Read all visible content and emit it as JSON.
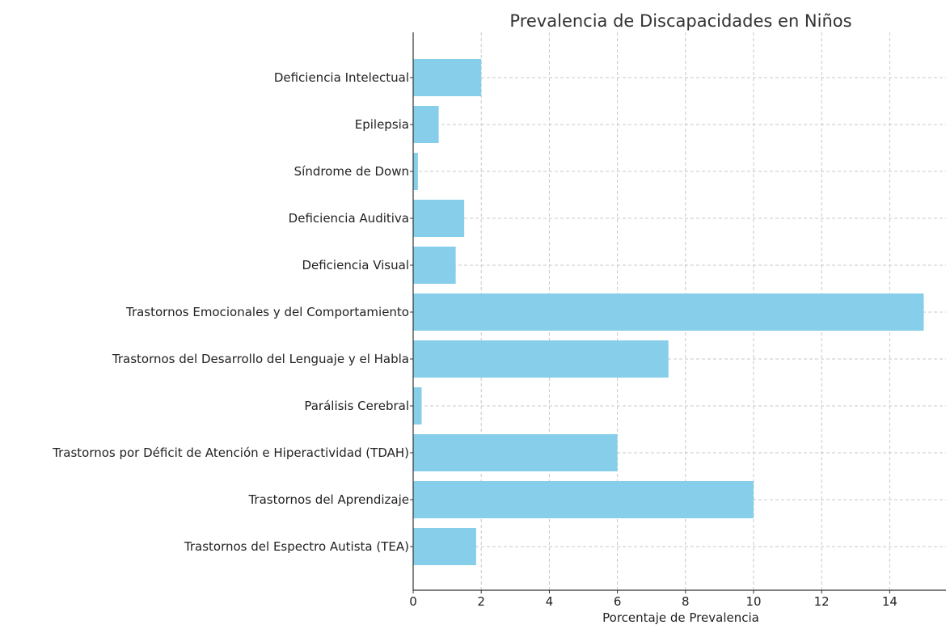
{
  "chart_data": {
    "type": "bar",
    "orientation": "horizontal",
    "title": "Prevalencia de Discapacidades en Niños",
    "xlabel": "Porcentaje de Prevalencia",
    "ylabel": "",
    "xlim": [
      0,
      15.6
    ],
    "xticks": [
      0,
      2,
      4,
      6,
      8,
      10,
      12,
      14
    ],
    "grid": true,
    "bar_color": "#87CEEB",
    "categories": [
      "Trastornos del Espectro Autista (TEA)",
      "Trastornos del Aprendizaje",
      "Trastornos por Déficit de Atención e Hiperactividad (TDAH)",
      "Parálisis Cerebral",
      "Trastornos del Desarrollo del Lenguaje y el Habla",
      "Trastornos Emocionales y del Comportamiento",
      "Deficiencia Visual",
      "Deficiencia Auditiva",
      "Síndrome de Down",
      "Epilepsia",
      "Deficiencia Intelectual"
    ],
    "values": [
      1.85,
      10,
      6,
      0.25,
      7.5,
      15,
      1.25,
      1.5,
      0.14,
      0.75,
      2
    ]
  }
}
